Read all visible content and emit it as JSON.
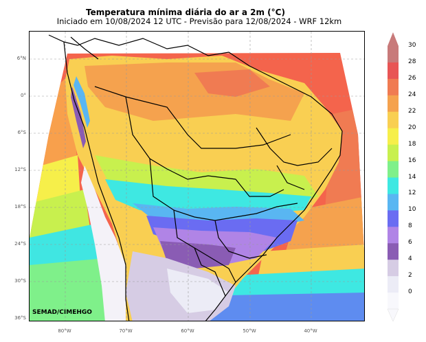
{
  "header": {
    "title": "Temperatura mínima diária do ar a 2m (°C)",
    "subtitle": "Iniciado em 10/08/2024 12 UTC - Previsão para 12/08/2024 - WRF 12km"
  },
  "credit": "SEMAD/CIMEHGO",
  "axes": {
    "lat_labels": [
      "6°N",
      "0°",
      "6°S",
      "12°S",
      "18°S",
      "24°S",
      "30°S",
      "36°S"
    ],
    "lon_labels": [
      "80°W",
      "70°W",
      "60°W",
      "50°W",
      "40°W"
    ]
  },
  "colorbar": {
    "labels": [
      "30",
      "28",
      "26",
      "24",
      "22",
      "20",
      "18",
      "16",
      "14",
      "12",
      "10",
      "8",
      "6",
      "4",
      "2",
      "0"
    ],
    "colors": [
      "#c87a7a",
      "#e85555",
      "#f07b52",
      "#f5a24e",
      "#f9cf52",
      "#f6ef4a",
      "#c8f04e",
      "#7ff08a",
      "#3ee8e2",
      "#59b6f2",
      "#6a6cf2",
      "#b084e6",
      "#8a5cb4",
      "#d6cce4",
      "#ececf6",
      "#f8f8fc"
    ]
  },
  "map_colors": {
    "ocean_north": "#f4644c",
    "ocean_mid": "#f8a04c",
    "ocean_cyan": "#40e6e2",
    "ocean_blue": "#5e8cf0",
    "cold_purple": "#8d62ba",
    "andes_white": "#f4f2f8",
    "outside": "#ffffff"
  }
}
